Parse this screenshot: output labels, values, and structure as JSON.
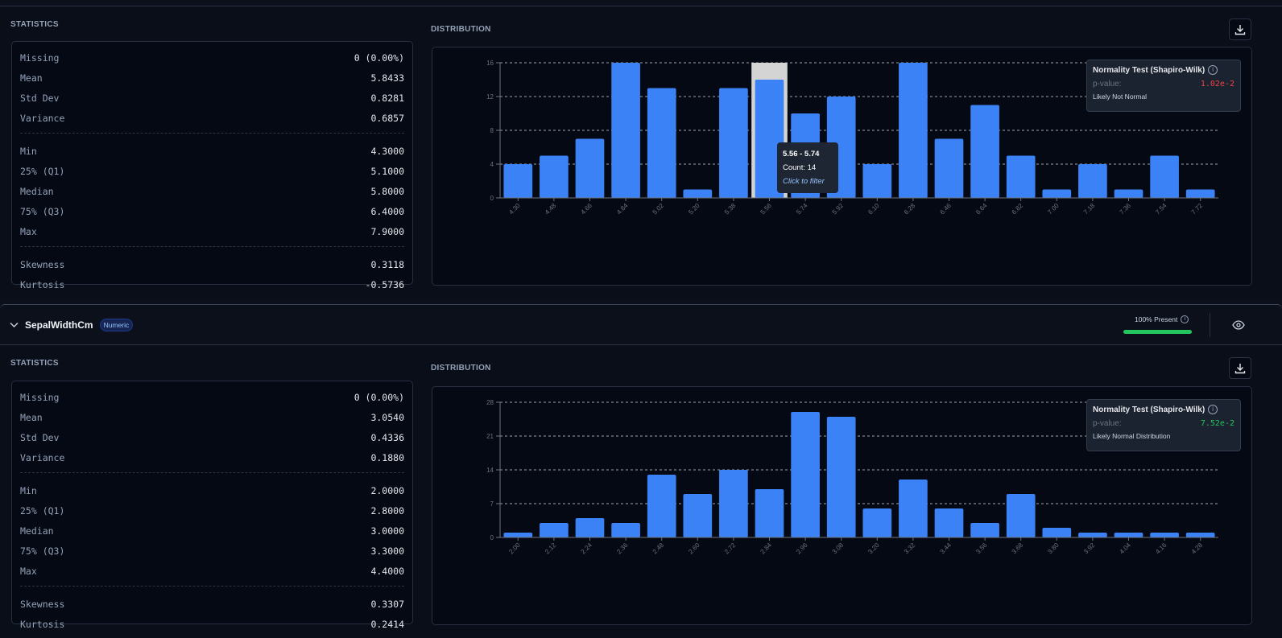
{
  "sections": [
    {
      "statistics_label": "STATISTICS",
      "distribution_label": "DISTRIBUTION",
      "stats_groups": [
        [
          {
            "label": "Missing",
            "value": "0 (0.00%)"
          },
          {
            "label": "Mean",
            "value": "5.8433"
          },
          {
            "label": "Std Dev",
            "value": "0.8281"
          },
          {
            "label": "Variance",
            "value": "0.6857"
          }
        ],
        [
          {
            "label": "Min",
            "value": "4.3000"
          },
          {
            "label": "25% (Q1)",
            "value": "5.1000"
          },
          {
            "label": "Median",
            "value": "5.8000"
          },
          {
            "label": "75% (Q3)",
            "value": "6.4000"
          },
          {
            "label": "Max",
            "value": "7.9000"
          }
        ],
        [
          {
            "label": "Skewness",
            "value": "0.3118"
          },
          {
            "label": "Kurtosis",
            "value": "-0.5736"
          }
        ]
      ],
      "normality": {
        "title": "Normality Test (Shapiro-Wilk)",
        "p_label": "p-value:",
        "p_value": "1.02e-2",
        "p_color": "#ef4444",
        "conclusion": "Likely Not Normal"
      },
      "tooltip": {
        "range": "5.56 - 5.74",
        "count": "Count: 14",
        "hint": "Click to filter"
      }
    },
    {
      "column_name": "SepalWidthCm",
      "type_badge": "Numeric",
      "present_label": "100% Present",
      "present_fraction": 1.0,
      "statistics_label": "STATISTICS",
      "distribution_label": "DISTRIBUTION",
      "stats_groups": [
        [
          {
            "label": "Missing",
            "value": "0 (0.00%)"
          },
          {
            "label": "Mean",
            "value": "3.0540"
          },
          {
            "label": "Std Dev",
            "value": "0.4336"
          },
          {
            "label": "Variance",
            "value": "0.1880"
          }
        ],
        [
          {
            "label": "Min",
            "value": "2.0000"
          },
          {
            "label": "25% (Q1)",
            "value": "2.8000"
          },
          {
            "label": "Median",
            "value": "3.0000"
          },
          {
            "label": "75% (Q3)",
            "value": "3.3000"
          },
          {
            "label": "Max",
            "value": "4.4000"
          }
        ],
        [
          {
            "label": "Skewness",
            "value": "0.3307"
          },
          {
            "label": "Kurtosis",
            "value": "0.2414"
          }
        ]
      ],
      "normality": {
        "title": "Normality Test (Shapiro-Wilk)",
        "p_label": "p-value:",
        "p_value": "7.52e-2",
        "p_color": "#22c55e",
        "conclusion": "Likely Normal Distribution"
      }
    }
  ],
  "chart_data": [
    {
      "type": "bar",
      "categories": [
        "4.30",
        "4.48",
        "4.66",
        "4.84",
        "5.02",
        "5.20",
        "5.38",
        "5.56",
        "5.74",
        "5.92",
        "6.10",
        "6.28",
        "6.46",
        "6.64",
        "6.82",
        "7.00",
        "7.18",
        "7.36",
        "7.54",
        "7.72"
      ],
      "values": [
        4,
        5,
        7,
        16,
        13,
        1,
        13,
        14,
        10,
        12,
        4,
        16,
        7,
        11,
        5,
        1,
        4,
        1,
        5,
        1
      ],
      "yticks": [
        "0",
        "4",
        "8",
        "12",
        "16"
      ],
      "ylim": [
        0,
        16
      ],
      "grid": true,
      "highlighted_category": "5.56",
      "bar_color": "#3b82f6"
    },
    {
      "type": "bar",
      "categories": [
        "2.00",
        "2.12",
        "2.24",
        "2.36",
        "2.48",
        "2.60",
        "2.72",
        "2.84",
        "2.96",
        "3.08",
        "3.20",
        "3.32",
        "3.44",
        "3.56",
        "3.68",
        "3.80",
        "3.92",
        "4.04",
        "4.16",
        "4.28"
      ],
      "values": [
        1,
        3,
        4,
        3,
        13,
        9,
        14,
        10,
        26,
        25,
        6,
        12,
        6,
        3,
        9,
        2,
        1,
        1,
        1,
        1
      ],
      "yticks": [
        "0",
        "7",
        "14",
        "21",
        "28"
      ],
      "ylim": [
        0,
        28
      ],
      "grid": true,
      "bar_color": "#3b82f6"
    }
  ]
}
